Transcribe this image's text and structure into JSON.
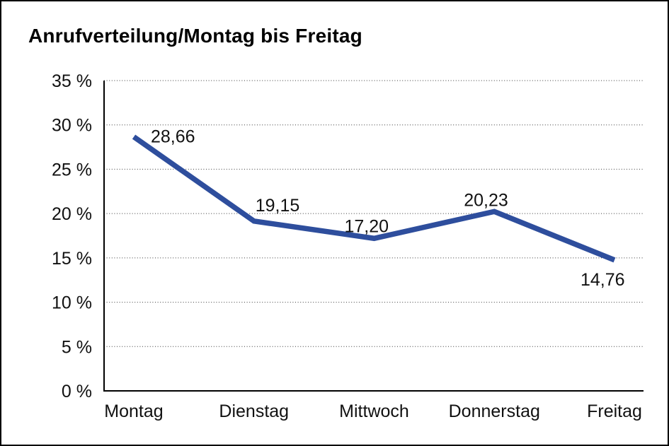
{
  "chart_data": {
    "type": "line",
    "title": "Anrufverteilung/Montag bis Freitag",
    "categories": [
      "Montag",
      "Dienstag",
      "Mittwoch",
      "Donnerstag",
      "Freitag"
    ],
    "values": [
      28.66,
      19.15,
      17.2,
      20.23,
      14.76
    ],
    "data_labels": [
      "28,66",
      "19,15",
      "17,20",
      "20,23",
      "14,76"
    ],
    "label_positions": [
      "right",
      "above",
      "above",
      "above",
      "below"
    ],
    "xlabel": "",
    "ylabel": "",
    "ylim": [
      0,
      35
    ],
    "ytick_step": 5,
    "ytick_labels": [
      "0 %",
      "5 %",
      "10 %",
      "15 %",
      "20 %",
      "25 %",
      "30 %",
      "35 %"
    ],
    "grid": "horizontal-dotted",
    "legend": "none",
    "line_color": "#2e4e9d",
    "text_color": "#111111",
    "background_color": "#ffffff",
    "border_color": "#000000"
  }
}
